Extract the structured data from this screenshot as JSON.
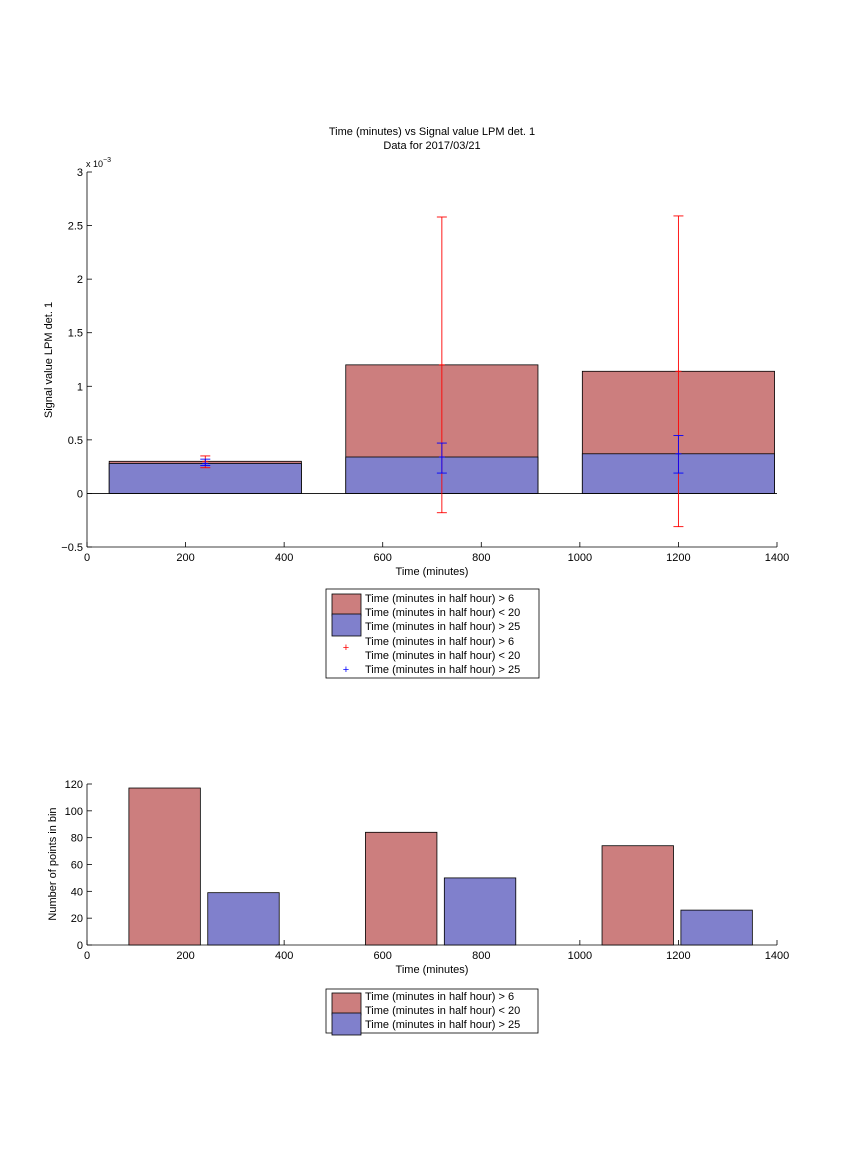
{
  "chart_data": [
    {
      "type": "bar",
      "title": "Time (minutes) vs Signal value LPM det. 1",
      "subtitle": "Data for 2017/03/21",
      "xlabel": "Time (minutes)",
      "ylabel": "Signal value LPM det. 1",
      "y_exponent_label": "x 10",
      "y_exponent_power": "−3",
      "xlim": [
        0,
        1400
      ],
      "ylim": [
        -0.5,
        3
      ],
      "xticks": [
        "0",
        "200",
        "400",
        "600",
        "800",
        "1000",
        "1200",
        "1400"
      ],
      "yticks": [
        "−0.5",
        "0",
        "0.5",
        "1",
        "1.5",
        "2",
        "2.5",
        "3"
      ],
      "grid": false,
      "legend_position": "below",
      "legend": [
        "Time (minutes in half hour) > 6",
        "Time (minutes in half hour) < 20",
        "Time (minutes in half hour) > 25",
        "Time (minutes in half hour) > 6",
        "Time (minutes in half hour) < 20",
        "Time (minutes in half hour) > 25"
      ],
      "bins": [
        {
          "x_start": 45,
          "x_end": 435,
          "center": 240
        },
        {
          "x_start": 525,
          "x_end": 915,
          "center": 720
        },
        {
          "x_start": 1005,
          "x_end": 1395,
          "center": 1200
        }
      ],
      "series": [
        {
          "color": "#cc7e7e",
          "values": [
            0.3,
            1.2,
            1.14
          ],
          "errorbars": {
            "color": "#ff0000",
            "low": [
              0.24,
              -0.18,
              -0.31
            ],
            "high": [
              0.35,
              2.58,
              2.59
            ]
          }
        },
        {
          "color": "#8080cc",
          "values": [
            0.28,
            0.34,
            0.37
          ],
          "errorbars": {
            "color": "#0000ff",
            "low": [
              0.26,
              0.19,
              0.19
            ],
            "high": [
              0.32,
              0.47,
              0.54
            ]
          }
        }
      ]
    },
    {
      "type": "bar",
      "xlabel": "Time (minutes)",
      "ylabel": "Number of points in bin",
      "xlim": [
        0,
        1400
      ],
      "ylim": [
        0,
        120
      ],
      "xticks": [
        "0",
        "200",
        "400",
        "600",
        "800",
        "1000",
        "1200",
        "1400"
      ],
      "yticks": [
        "0",
        "20",
        "40",
        "60",
        "80",
        "100",
        "120"
      ],
      "grid": false,
      "legend_position": "below",
      "legend": [
        "Time (minutes in half hour) > 6",
        "Time (minutes in half hour) < 20",
        "Time (minutes in half hour) > 25"
      ],
      "bars": [
        {
          "x_start": 85,
          "x_end": 230,
          "value": 117,
          "color": "#cc7e7e"
        },
        {
          "x_start": 245,
          "x_end": 390,
          "value": 39,
          "color": "#8080cc"
        },
        {
          "x_start": 565,
          "x_end": 710,
          "value": 84,
          "color": "#cc7e7e"
        },
        {
          "x_start": 725,
          "x_end": 870,
          "value": 50,
          "color": "#8080cc"
        },
        {
          "x_start": 1045,
          "x_end": 1190,
          "value": 74,
          "color": "#cc7e7e"
        },
        {
          "x_start": 1205,
          "x_end": 1350,
          "value": 26,
          "color": "#8080cc"
        }
      ]
    }
  ]
}
